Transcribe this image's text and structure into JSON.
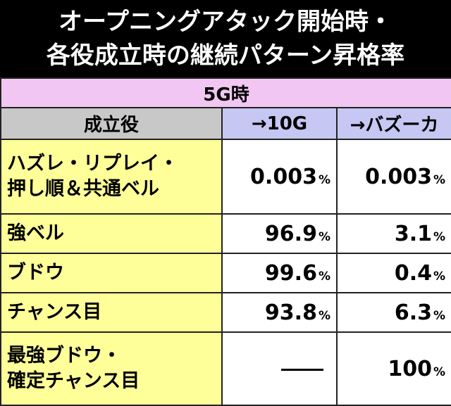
{
  "title": {
    "line1": "オープニングアタック開始時・",
    "line2": "各役成立時の継続パターン昇格率"
  },
  "table": {
    "section": "5G時",
    "headers": [
      "成立役",
      "→10G",
      "→バズーカ"
    ],
    "rows": [
      {
        "label_lines": [
          "ハズレ・リプレイ・",
          "押し順＆共通ベル"
        ],
        "v1": "0.003",
        "v2": "0.003",
        "unit": "%"
      },
      {
        "label_lines": [
          "強ベル"
        ],
        "v1": "96.9",
        "v2": "3.1",
        "unit": "%"
      },
      {
        "label_lines": [
          "ブドウ"
        ],
        "v1": "99.6",
        "v2": "0.4",
        "unit": "%"
      },
      {
        "label_lines": [
          "チャンス目"
        ],
        "v1": "93.8",
        "v2": "6.3",
        "unit": "%"
      },
      {
        "label_lines": [
          "最強ブドウ・",
          "確定チャンス目"
        ],
        "v1": "",
        "v2": "100",
        "unit": "%"
      }
    ]
  }
}
